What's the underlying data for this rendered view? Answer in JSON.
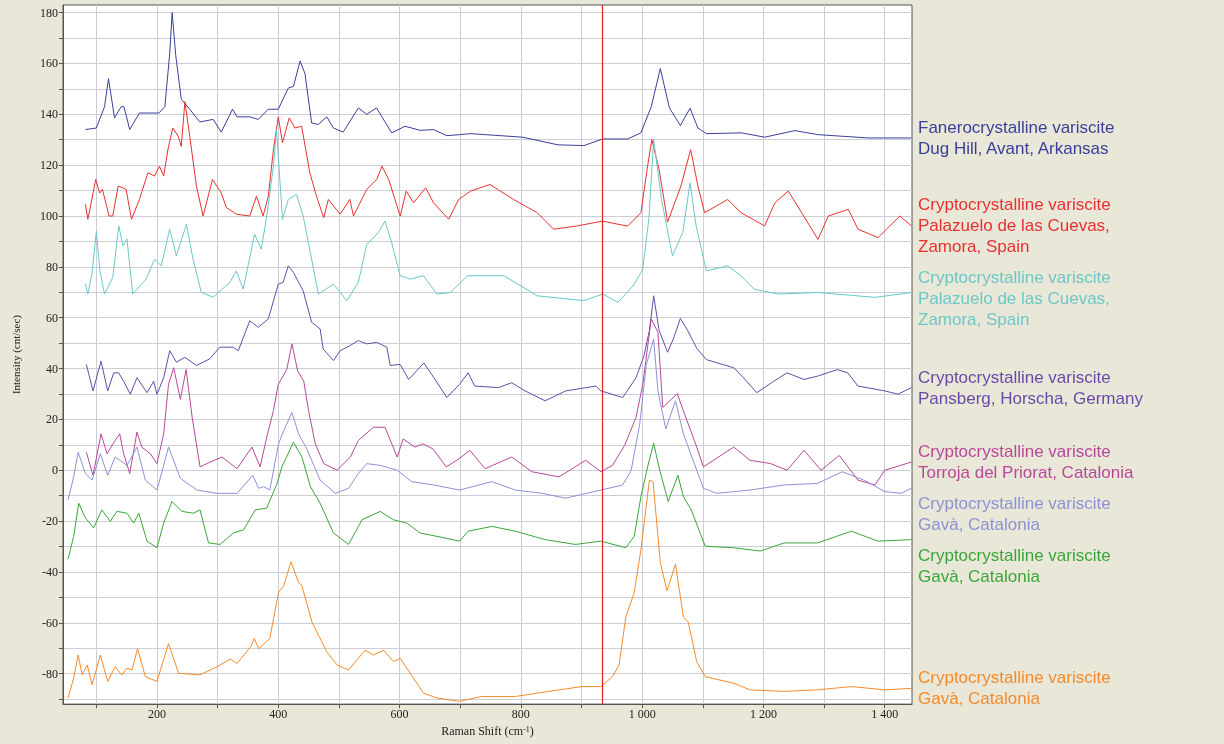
{
  "chart_data": {
    "type": "line",
    "xlabel": "Raman Shift (cm$^{-1}$)",
    "ylabel": "Intensity (cnt/sec)",
    "xlim": [
      45,
      1445
    ],
    "ylim": [
      -92,
      183
    ],
    "xticks": [
      {
        "value": 100,
        "label": null
      },
      200,
      {
        "value": 300,
        "label": null
      },
      400,
      {
        "value": 500,
        "label": null
      },
      600,
      {
        "value": 700,
        "label": null
      },
      800,
      {
        "value": 900,
        "label": null
      },
      {
        "value": 1000,
        "label": "1 000"
      },
      {
        "value": 1100,
        "label": null
      },
      {
        "value": 1200,
        "label": "1 200"
      },
      {
        "value": 1300,
        "label": null
      },
      {
        "value": 1400,
        "label": "1 400"
      }
    ],
    "yticks": [
      {
        "value": -90,
        "label": null
      },
      -80,
      {
        "value": -70,
        "label": null
      },
      -60,
      {
        "value": -50,
        "label": null
      },
      -40,
      {
        "value": -30,
        "label": null
      },
      -20,
      {
        "value": -10,
        "label": null
      },
      0,
      {
        "value": 10,
        "label": null
      },
      20,
      {
        "value": 30,
        "label": null
      },
      40,
      {
        "value": 50,
        "label": null
      },
      60,
      {
        "value": 70,
        "label": null
      },
      80,
      {
        "value": 90,
        "label": null
      },
      100,
      {
        "value": 110,
        "label": null
      },
      120,
      {
        "value": 130,
        "label": null
      },
      140,
      {
        "value": 150,
        "label": null
      },
      160,
      {
        "value": 170,
        "label": null
      },
      180
    ],
    "grid": true,
    "legend": "right",
    "marker": "none",
    "ref_lines": [
      {
        "axis": "x",
        "value": 935,
        "color": "#e02020"
      }
    ],
    "series": [
      {
        "name": "Fanerocrystalline variscite\nDug Hill, Avant, Arkansas",
        "color": "#3a3f9a",
        "x": [
          82,
          100,
          113.5,
          120,
          130,
          141,
          145.5,
          155,
          171,
          185,
          203,
          213,
          221,
          225,
          231,
          240,
          254,
          270.5,
          292.5,
          306,
          324.5,
          332,
          353,
          367,
          383.5,
          400,
          416.5,
          425,
          436,
          444,
          455,
          466,
          480,
          491,
          507,
          532,
          546,
          562,
          587,
          609,
          634,
          656,
          678,
          699,
          717,
          803,
          861,
          904,
          935,
          976,
          998,
          1015,
          1030,
          1045,
          1063,
          1079,
          1092,
          1106,
          1164,
          1202,
          1252,
          1290,
          1373,
          1444
        ],
        "values": [
          134,
          134.6,
          143,
          154,
          138.6,
          143,
          143,
          134,
          140.5,
          140.5,
          140.5,
          143,
          164,
          180,
          163,
          146,
          142,
          137,
          138,
          133,
          142,
          139,
          139,
          138,
          142,
          142,
          150.3,
          151,
          161,
          156,
          136.6,
          136,
          139,
          134.6,
          133,
          142.5,
          140,
          142.5,
          132.7,
          135.3,
          133.7,
          134,
          131.6,
          132,
          132.4,
          131,
          128,
          127.7,
          130.3,
          130.3,
          132.7,
          143,
          158,
          142.5,
          135.6,
          142.4,
          134.6,
          132.4,
          132.7,
          131,
          133.6,
          132,
          130.7,
          130.7
        ]
      },
      {
        "name": "Cryptocrystalline variscite\nPalazuelo de las Cuevas,\nZamora, Spain",
        "color": "#e83030",
        "x": [
          82,
          86,
          99,
          105.5,
          110,
          121,
          127,
          136,
          149,
          158,
          171,
          185,
          196,
          204,
          211,
          218,
          226,
          235,
          240,
          246,
          254,
          265,
          276,
          291.5,
          306,
          314.5,
          331,
          353,
          364,
          375,
          383.5,
          392,
          400,
          407,
          418,
          427.5,
          438.5,
          452,
          463,
          475,
          482.5,
          502,
          518,
          524,
          546,
          562.5,
          571,
          582,
          601,
          611,
          623,
          643,
          656,
          681,
          697.5,
          717,
          749,
          788,
          827,
          854,
          893,
          935,
          976,
          998,
          1009,
          1016,
          1028,
          1042,
          1064,
          1080,
          1092,
          1103,
          1141,
          1163,
          1202,
          1219,
          1241,
          1263,
          1290,
          1307,
          1340,
          1356,
          1389,
          1425,
          1444
        ],
        "values": [
          104.6,
          98.7,
          114.4,
          109,
          110.5,
          100,
          100,
          111.8,
          110.5,
          98.7,
          106.5,
          117,
          115.7,
          119.6,
          115.7,
          126.1,
          134.6,
          131.4,
          127.4,
          145,
          131.4,
          111.8,
          100,
          114.4,
          109,
          103.3,
          100.7,
          100,
          107.8,
          100,
          107.8,
          126.1,
          139,
          128.8,
          138.6,
          134.6,
          135.3,
          117,
          107.8,
          99.3,
          106.5,
          100.7,
          106.5,
          100,
          110.5,
          114.4,
          119.6,
          114.4,
          100,
          109.8,
          105.2,
          111.1,
          105.2,
          98.7,
          106.5,
          109.8,
          112.4,
          106.5,
          101.3,
          94.8,
          96.1,
          98,
          96,
          101.3,
          119.6,
          130,
          118.3,
          97.6,
          111.8,
          126.1,
          111.8,
          101.3,
          106.5,
          101.3,
          96.1,
          105.2,
          109.8,
          101.3,
          90.8,
          100,
          102.6,
          94.8,
          91.5,
          100,
          96.1
        ]
      },
      {
        "name": "Cryptocrystalline variscite\nPalazuelo de las Cuevas,\nZamora, Spain",
        "color": "#6cc8c8",
        "x": [
          82,
          86,
          93,
          100,
          105.5,
          113.5,
          127,
          137,
          144,
          150.5,
          160,
          182,
          196,
          207,
          221,
          232,
          248.5,
          259.5,
          273,
          292.5,
          320,
          331,
          342,
          361,
          372,
          381,
          392,
          397,
          407,
          416.5,
          430,
          441,
          455,
          466,
          491,
          513,
          532,
          546,
          565,
          576,
          587,
          601,
          617.5,
          639.5,
          661.5,
          684,
          712,
          772,
          827,
          904,
          935,
          960,
          985,
          1001,
          1011,
          1019,
          1032,
          1050,
          1067,
          1079,
          1089,
          1106,
          1141,
          1163,
          1185,
          1224,
          1290,
          1384,
          1444
        ],
        "values": [
          73.2,
          69.3,
          77.8,
          94.1,
          79.1,
          69.3,
          75.8,
          96.1,
          88.2,
          90.9,
          69.3,
          75.2,
          83,
          80.4,
          94.8,
          84.3,
          96.7,
          83,
          70,
          68,
          73.9,
          78.4,
          71.2,
          92.8,
          86.9,
          100,
          119.6,
          134,
          98.7,
          106.5,
          108.5,
          100,
          83,
          69.3,
          73.2,
          66.7,
          73.9,
          88.9,
          93.5,
          98,
          89.5,
          76.5,
          75.2,
          76.5,
          69.3,
          69.9,
          76.5,
          76.5,
          68.6,
          66.7,
          69.3,
          66,
          72.5,
          79,
          98.7,
          130,
          106.5,
          84.3,
          93.5,
          113,
          96.1,
          78.4,
          80.4,
          76.5,
          71.2,
          69.3,
          69.9,
          68,
          69.9
        ]
      },
      {
        "name": "Cryptocrystalline variscite\nPansberg, Horscha, Germany",
        "color": "#6a4aa8",
        "x": [
          83.5,
          94.5,
          107.7,
          118.7,
          128.6,
          136.8,
          145,
          156,
          167,
          183.5,
          194.5,
          200,
          211,
          221,
          232,
          246,
          265,
          287,
          303.6,
          325.6,
          334,
          353,
          367,
          383.5,
          400,
          408,
          416.5,
          425,
          441,
          455,
          469,
          474,
          491,
          502,
          518,
          532,
          546,
          562.5,
          579,
          584.6,
          601,
          615,
          640,
          656.6,
          678,
          699,
          713,
          724,
          763,
          785,
          807,
          840,
          874,
          923.5,
          932,
          968,
          990,
          1003,
          1012,
          1019,
          1028,
          1042,
          1052,
          1063,
          1075,
          1090,
          1106,
          1151,
          1167,
          1189,
          1217,
          1239,
          1267,
          1289,
          1322,
          1339,
          1356,
          1400,
          1422,
          1444
        ],
        "values": [
          41.6,
          31.2,
          42.9,
          31.2,
          38.3,
          38.3,
          35,
          29.9,
          36.4,
          30.5,
          35,
          29.9,
          36.4,
          47,
          42.5,
          44.4,
          41.2,
          43.8,
          48.4,
          48.4,
          47,
          58.8,
          56.2,
          59.5,
          73.2,
          73.9,
          80.4,
          77.8,
          70.6,
          58.2,
          55.6,
          47.7,
          43.1,
          47,
          49,
          51,
          49.7,
          50.3,
          48.4,
          41.2,
          41.6,
          35.7,
          42.2,
          36.4,
          28.6,
          33.8,
          38.3,
          33.1,
          32.5,
          34.4,
          31.2,
          27.3,
          31.2,
          33.1,
          31.2,
          28.6,
          36.4,
          45,
          55,
          68.6,
          55,
          46.4,
          52,
          59.7,
          55,
          48,
          43.5,
          40.3,
          36.4,
          30.5,
          35,
          38.3,
          35.7,
          37,
          39.6,
          38.3,
          33.1,
          31.2,
          29.9,
          32.5
        ]
      },
      {
        "name": "Cryptocrystalline variscite\nTorroja del Priorat, Catalonia",
        "color": "#b8489a",
        "x": [
          83.5,
          94.5,
          107.7,
          117.6,
          131,
          138.5,
          145,
          155,
          167,
          175,
          189,
          200,
          211,
          219,
          227.5,
          238.5,
          248,
          258,
          271,
          282,
          307,
          332,
          356.6,
          370,
          381,
          392,
          400,
          414,
          422.5,
          432,
          442,
          450,
          461,
          475,
          497,
          519,
          532,
          557,
          576,
          596,
          606,
          625,
          638.5,
          655,
          677,
          698,
          716,
          741,
          785,
          818,
          863,
          907,
          932,
          951,
          971,
          990,
          1001,
          1015,
          1026,
          1034,
          1058,
          1068,
          1090,
          1101,
          1151,
          1178,
          1212,
          1239,
          1267,
          1295,
          1325,
          1356,
          1384,
          1400,
          1444
        ],
        "values": [
          7.1,
          -2,
          14.3,
          6.5,
          11.7,
          14.3,
          6.5,
          -1.3,
          15,
          9.1,
          6.5,
          2.6,
          14.3,
          33.8,
          40.3,
          27.9,
          39.6,
          20.8,
          1.3,
          2.6,
          5.2,
          0.6,
          9.1,
          1.3,
          13,
          23.4,
          33.8,
          39.6,
          49.7,
          39,
          35,
          23.4,
          10.4,
          2.6,
          0,
          5.2,
          11.7,
          16.9,
          16.9,
          5.2,
          12.3,
          9.1,
          10.4,
          8.4,
          1.3,
          4.5,
          7.8,
          0.6,
          5.2,
          -0.6,
          -2.6,
          3.9,
          -0.6,
          1.9,
          9.7,
          20.8,
          33.8,
          59.5,
          54.3,
          24.7,
          30.1,
          23.4,
          9.1,
          1.3,
          9.1,
          3.9,
          2.6,
          0,
          7.8,
          0,
          5.8,
          -3.9,
          -5.8,
          0,
          3.2
        ]
      },
      {
        "name": "Cryptocrystalline variscite\nGavà, Catalonia",
        "color": "#8c92d4",
        "x": [
          53.3,
          62.6,
          70,
          81.9,
          93,
          106.6,
          118.7,
          131,
          150.5,
          167,
          180.8,
          200,
          219,
          238.5,
          266,
          299,
          332,
          358,
          367.6,
          376,
          386,
          400.5,
          409,
          422.5,
          433.5,
          447,
          469,
          494,
          516,
          532,
          546,
          568,
          596,
          620,
          656,
          699,
          752,
          791,
          835,
          874,
          932,
          968,
          982,
          996,
          1007,
          1019,
          1026,
          1039,
          1055,
          1068,
          1084,
          1101,
          1123,
          1178,
          1234,
          1289,
          1330,
          1366,
          1400,
          1427,
          1444
        ],
        "values": [
          -11.7,
          -2.6,
          7.1,
          -1.3,
          -3.9,
          6.5,
          -2,
          5.2,
          1.9,
          9.1,
          -3.9,
          -7.8,
          9.1,
          -3.2,
          -7.8,
          -9.1,
          -9.1,
          -2,
          -7.1,
          -6.5,
          -7.8,
          10.4,
          15.6,
          22.7,
          14.3,
          8.4,
          -3.9,
          -9.1,
          -7.1,
          -1.3,
          2.6,
          1.9,
          0,
          -4.5,
          -5.8,
          -7.8,
          -4.5,
          -7.8,
          -9.1,
          -11,
          -7.8,
          -5.8,
          0,
          18.2,
          41.6,
          51.6,
          31.2,
          16.2,
          27.3,
          14.3,
          3.9,
          -7.1,
          -9.1,
          -7.8,
          -5.8,
          -5.2,
          -0.6,
          -3.9,
          -8.4,
          -9.1,
          -7.1
        ]
      },
      {
        "name": "Cryptocrystalline variscite\nGavà, Catalonia",
        "color": "#3aa63a",
        "x": [
          53.3,
          62.6,
          71,
          82,
          95.6,
          109,
          123,
          134,
          150.5,
          161.5,
          170,
          183.5,
          200,
          211,
          224.7,
          241,
          260,
          271,
          285,
          304,
          326,
          343,
          362,
          381,
          398,
          406,
          425,
          439,
          453,
          469,
          491,
          516,
          538,
          568,
          590,
          612,
          634,
          661.5,
          699,
          713,
          752,
          791,
          840,
          890,
          932,
          973,
          987,
          998,
          1009,
          1019,
          1029,
          1043,
          1059,
          1068,
          1081,
          1104,
          1151,
          1195,
          1234,
          1289,
          1345,
          1389,
          1444
        ],
        "values": [
          -35,
          -26,
          -13,
          -18.8,
          -22.7,
          -15.6,
          -20.1,
          -16.2,
          -16.9,
          -20.8,
          -16.9,
          -27.9,
          -30.5,
          -20.8,
          -12.3,
          -16.2,
          -16.9,
          -15.6,
          -28.6,
          -29.2,
          -24.7,
          -23.4,
          -15.6,
          -14.9,
          -5.2,
          1.3,
          11,
          5.2,
          -6.5,
          -13,
          -24.7,
          -29.2,
          -19.5,
          -16.2,
          -19.5,
          -20.8,
          -24.7,
          -26,
          -27.9,
          -24,
          -22.1,
          -24,
          -27.3,
          -29.2,
          -27.9,
          -30.5,
          -26,
          -10.4,
          1.3,
          10.6,
          0,
          -12.3,
          -2,
          -10.4,
          -15.6,
          -29.9,
          -30.5,
          -31.8,
          -28.6,
          -28.6,
          -24,
          -27.9,
          -27.3
        ]
      },
      {
        "name": "Cryptocrystalline variscite\nGavà, Catalonia",
        "color": "#f58a2a",
        "x": [
          53.3,
          62.6,
          70,
          76.6,
          85,
          93,
          106.6,
          118.7,
          131,
          142,
          150.5,
          158.8,
          168,
          180.8,
          200,
          219,
          235.7,
          271,
          299,
          321,
          332,
          354,
          360.5,
          367.6,
          386,
          400.5,
          409,
          421,
          433.5,
          439,
          455.5,
          480,
          497,
          516,
          543,
          557,
          573.6,
          590,
          601,
          623,
          639.5,
          661.5,
          699,
          735,
          791,
          846,
          901,
          932,
          951,
          962,
          973,
          987,
          998,
          1012,
          1018,
          1030,
          1041,
          1055,
          1068,
          1076,
          1090,
          1104,
          1151,
          1178,
          1234,
          1289,
          1345,
          1400,
          1444
        ],
        "values": [
          -89.6,
          -81.8,
          -72.7,
          -80.5,
          -76.6,
          -84.4,
          -72.7,
          -83.1,
          -77.3,
          -80.5,
          -77.9,
          -78.6,
          -70.2,
          -81.2,
          -83.1,
          -68.2,
          -79.9,
          -80.5,
          -77.3,
          -74.3,
          -76,
          -69.6,
          -66.2,
          -70.2,
          -66.2,
          -48,
          -45.5,
          -36,
          -44.2,
          -45.5,
          -59.7,
          -71.4,
          -76.6,
          -78.6,
          -70.8,
          -72.7,
          -70.8,
          -75.3,
          -74,
          -81.8,
          -87.7,
          -89.6,
          -90.9,
          -89,
          -89,
          -87,
          -85.1,
          -85.1,
          -81.2,
          -76.6,
          -57.8,
          -48.1,
          -31.2,
          -3.9,
          -4.5,
          -36.4,
          -47.4,
          -37,
          -57.8,
          -59.7,
          -75.3,
          -81.2,
          -83.8,
          -86.4,
          -87,
          -86.4,
          -85.1,
          -86.4,
          -85.8
        ]
      }
    ]
  }
}
